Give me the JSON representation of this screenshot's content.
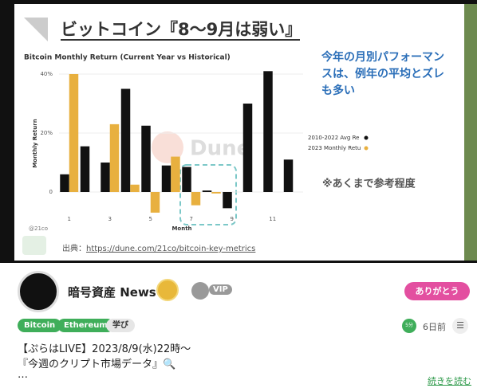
{
  "slide": {
    "title": "ビットコイン『8〜9月は弱い』",
    "note": [
      "今年の月別パフォーマン",
      "スは、例年の平均とズレ",
      "も多い"
    ],
    "caveat": "※あくまで参考程度",
    "source_label": "出典：",
    "source_url": "https://dune.com/21co/bitcoin-key-metrics",
    "watermark": "Dune",
    "handle": "@21co"
  },
  "chart_data": {
    "type": "bar",
    "title": "Bitcoin Monthly Return (Current Year vs Historical)",
    "x_label": "Month",
    "y_label": "Monthly Return",
    "categories": [
      "1",
      null,
      "3",
      null,
      "5",
      null,
      "7",
      null,
      "9",
      null,
      "11",
      null
    ],
    "series": [
      {
        "name": "2010-2022 Avg Re",
        "color": "#111111",
        "values": [
          6,
          15.5,
          10,
          35,
          22.5,
          9,
          8.5,
          0.5,
          -5.5,
          30,
          41,
          11
        ]
      },
      {
        "name": "2023 Monthly Retu",
        "color": "#e8b03f",
        "values": [
          40,
          null,
          23,
          2.5,
          -7,
          12,
          -4.5,
          -0.5,
          null,
          null,
          null,
          null
        ]
      }
    ],
    "ylim": [
      -10,
      42
    ],
    "yticks": [
      0,
      {
        "value": 20,
        "label": "20%"
      },
      {
        "value": 40,
        "label": "40%"
      }
    ]
  },
  "post": {
    "author": "暗号資産 News",
    "badge": "VIP",
    "button": "ありがとう",
    "tags": [
      "Bitcoin",
      "Ethereum",
      "学び"
    ],
    "read_time": "5分",
    "posted": "6日前",
    "lines": [
      "【ぷらはLIVE】2023/8/9(水)22時〜",
      "『今週のクリプト市場データ』🔍",
      "…"
    ],
    "more": "続きを読む"
  }
}
